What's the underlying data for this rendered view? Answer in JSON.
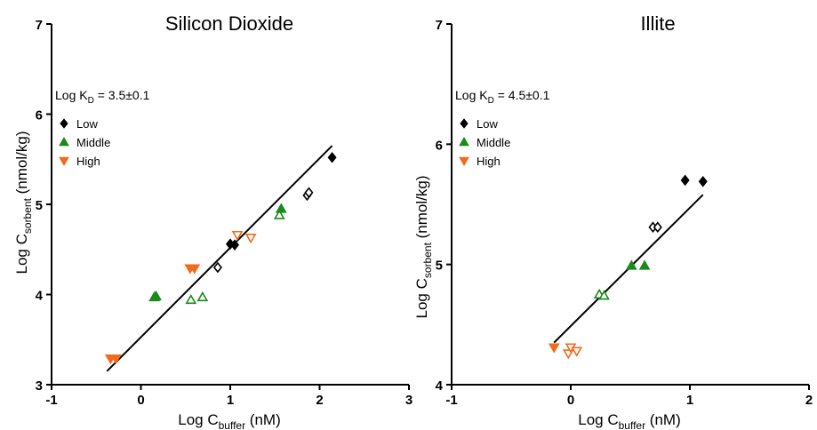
{
  "chart_data": [
    {
      "type": "scatter",
      "title": "Silicon Dioxide",
      "xlabel": {
        "main": "Log C",
        "sub": "buffer",
        "unit": " (nM)"
      },
      "ylabel": {
        "main": "Log C",
        "sub": "sorbent",
        "unit": " (nmol/kg)"
      },
      "xlim": [
        -1,
        3
      ],
      "ylim": [
        3,
        7
      ],
      "xticks": [
        "-1",
        "0",
        "1",
        "2",
        "3"
      ],
      "yticks": [
        "3",
        "4",
        "5",
        "6",
        "7"
      ],
      "annotation": {
        "main": "Log K",
        "sub": "D",
        "rest": " = 3.5±0.1"
      },
      "legend_position": "upper-left",
      "series": [
        {
          "name": "Low",
          "color": "#000000",
          "marker": "diamond",
          "points": [
            {
              "x": 0.86,
              "y": 4.3,
              "filled": false
            },
            {
              "x": 1.0,
              "y": 4.56,
              "filled": true
            },
            {
              "x": 1.05,
              "y": 4.55,
              "filled": true
            },
            {
              "x": 1.86,
              "y": 5.1,
              "filled": false
            },
            {
              "x": 1.88,
              "y": 5.13,
              "filled": false
            },
            {
              "x": 2.14,
              "y": 5.52,
              "filled": true
            }
          ]
        },
        {
          "name": "Middle",
          "color": "#1a8a1a",
          "marker": "triangle-up",
          "points": [
            {
              "x": 0.15,
              "y": 3.97,
              "filled": true
            },
            {
              "x": 0.17,
              "y": 3.98,
              "filled": true
            },
            {
              "x": 0.56,
              "y": 3.94,
              "filled": false
            },
            {
              "x": 0.69,
              "y": 3.97,
              "filled": false
            },
            {
              "x": 1.55,
              "y": 4.88,
              "filled": false
            },
            {
              "x": 1.57,
              "y": 4.95,
              "filled": true
            }
          ]
        },
        {
          "name": "High",
          "color": "#f26a1b",
          "marker": "triangle-down",
          "points": [
            {
              "x": -0.34,
              "y": 3.29,
              "filled": true
            },
            {
              "x": -0.28,
              "y": 3.29,
              "filled": true
            },
            {
              "x": 0.55,
              "y": 4.29,
              "filled": true
            },
            {
              "x": 0.6,
              "y": 4.29,
              "filled": true
            },
            {
              "x": 1.08,
              "y": 4.66,
              "filled": false
            },
            {
              "x": 1.23,
              "y": 4.63,
              "filled": false
            }
          ]
        }
      ],
      "fit_line": {
        "x": [
          -0.38,
          2.14
        ],
        "y": [
          3.15,
          5.65
        ]
      }
    },
    {
      "type": "scatter",
      "title": "Illite",
      "xlabel": {
        "main": "Log C",
        "sub": "buffer",
        "unit": " (nM)"
      },
      "ylabel": {
        "main": "Log C",
        "sub": "sorbent",
        "unit": " (nmol/kg)"
      },
      "xlim": [
        -1,
        2
      ],
      "ylim": [
        4,
        7
      ],
      "xticks": [
        "-1",
        "0",
        "1",
        "2"
      ],
      "yticks": [
        "4",
        "5",
        "6",
        "7"
      ],
      "annotation": {
        "main": "Log K",
        "sub": "D",
        "rest": " = 4.5±0.1"
      },
      "legend_position": "upper-left",
      "series": [
        {
          "name": "Low",
          "color": "#000000",
          "marker": "diamond",
          "points": [
            {
              "x": 0.69,
              "y": 5.31,
              "filled": false
            },
            {
              "x": 0.73,
              "y": 5.31,
              "filled": false
            },
            {
              "x": 0.96,
              "y": 5.7,
              "filled": true
            },
            {
              "x": 1.11,
              "y": 5.69,
              "filled": true
            }
          ]
        },
        {
          "name": "Middle",
          "color": "#1a8a1a",
          "marker": "triangle-up",
          "points": [
            {
              "x": 0.24,
              "y": 4.75,
              "filled": false
            },
            {
              "x": 0.28,
              "y": 4.74,
              "filled": false
            },
            {
              "x": 0.51,
              "y": 4.99,
              "filled": true
            },
            {
              "x": 0.62,
              "y": 4.99,
              "filled": true
            }
          ]
        },
        {
          "name": "High",
          "color": "#f26a1b",
          "marker": "triangle-down",
          "points": [
            {
              "x": -0.14,
              "y": 4.31,
              "filled": true
            },
            {
              "x": -0.02,
              "y": 4.26,
              "filled": false
            },
            {
              "x": 0.0,
              "y": 4.31,
              "filled": false
            },
            {
              "x": 0.05,
              "y": 4.28,
              "filled": false
            }
          ]
        }
      ],
      "fit_line": {
        "x": [
          -0.14,
          1.11
        ],
        "y": [
          4.35,
          5.58
        ]
      }
    }
  ]
}
